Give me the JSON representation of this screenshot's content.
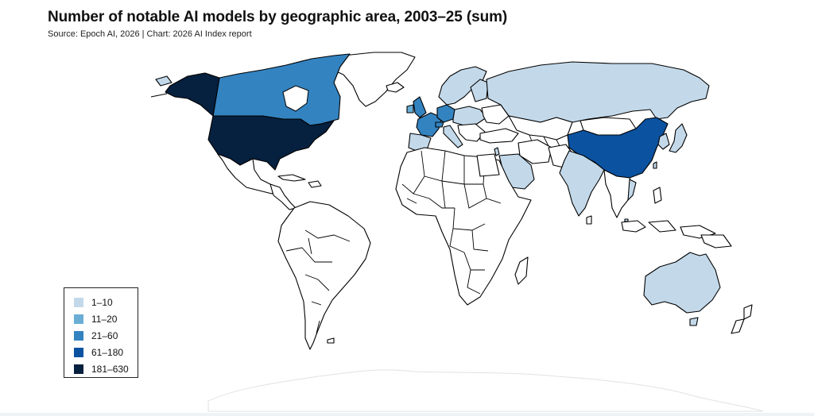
{
  "title": "Number of notable AI models by geographic area, 2003–25 (sum)",
  "source": "Source: Epoch AI, 2026 | Chart: 2026 AI Index report",
  "legend": {
    "items": [
      {
        "label": "1–10",
        "color": "#c3d9ea"
      },
      {
        "label": "11–20",
        "color": "#6aaed6"
      },
      {
        "label": "21–60",
        "color": "#3383c1"
      },
      {
        "label": "61–180",
        "color": "#0b52a0"
      },
      {
        "label": "181–630",
        "color": "#06203f"
      }
    ]
  },
  "colors": {
    "no_data": "#ffffff",
    "border": "#000000",
    "antarctica_outline": "#dddddd"
  }
}
